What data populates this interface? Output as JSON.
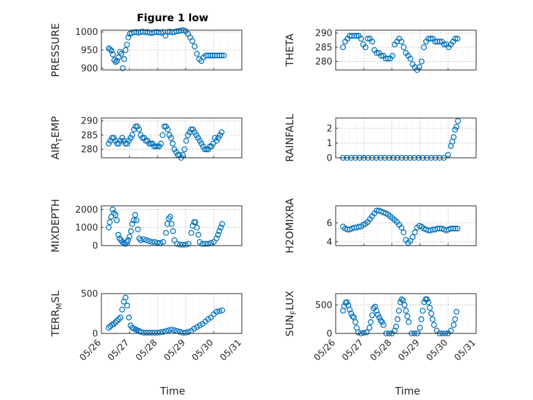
{
  "figure": {
    "title": "Figure 1 low",
    "xlabel": "Time",
    "x_tick_labels": [
      "05/26",
      "05/27",
      "05/28",
      "05/29",
      "05/30",
      "05/31"
    ]
  },
  "chart_data": [
    {
      "type": "scatter",
      "title": "Figure 1 low",
      "ylabel": "PRESSURE",
      "xlim": [
        0,
        5
      ],
      "ylim": [
        895,
        1005
      ],
      "yticks": [
        900,
        950,
        1000
      ],
      "grid": true,
      "x_unit": "days since 05/26",
      "x": [
        0.26,
        0.31,
        0.36,
        0.41,
        0.46,
        0.51,
        0.56,
        0.61,
        0.66,
        0.71,
        0.76,
        0.81,
        0.86,
        0.91,
        0.96,
        1.01,
        1.08,
        1.16,
        1.24,
        1.32,
        1.4,
        1.48,
        1.56,
        1.64,
        1.72,
        1.8,
        1.88,
        1.96,
        2.04,
        2.12,
        2.2,
        2.28,
        2.36,
        2.44,
        2.52,
        2.6,
        2.68,
        2.76,
        2.84,
        2.92,
        3.0,
        3.08,
        3.16,
        3.24,
        3.32,
        3.4,
        3.48,
        3.56,
        3.64,
        3.72,
        3.8,
        3.88,
        3.96,
        4.04,
        4.12,
        4.2,
        4.28,
        4.36
      ],
      "y": [
        955,
        952,
        948,
        938,
        922,
        917,
        920,
        930,
        945,
        940,
        900,
        925,
        950,
        965,
        985,
        995,
        997,
        999,
        1000,
        998,
        1000,
        1001,
        999,
        1000,
        998,
        997,
        999,
        1000,
        999,
        998,
        1000,
        990,
        1000,
        1001,
        999,
        1000,
        1002,
        1003,
        1004,
        1005,
        1002,
        995,
        985,
        975,
        960,
        940,
        925,
        920,
        930,
        935,
        935,
        935,
        935,
        935,
        935,
        935,
        935,
        935
      ]
    },
    {
      "type": "scatter",
      "ylabel": "THETA",
      "xlim": [
        0,
        5
      ],
      "ylim": [
        277,
        291
      ],
      "yticks": [
        280,
        285,
        290
      ],
      "grid": true,
      "x": [
        0.26,
        0.34,
        0.42,
        0.5,
        0.58,
        0.66,
        0.74,
        0.82,
        0.9,
        0.98,
        1.06,
        1.14,
        1.22,
        1.3,
        1.38,
        1.46,
        1.54,
        1.62,
        1.7,
        1.78,
        1.86,
        1.94,
        2.02,
        2.1,
        2.18,
        2.26,
        2.34,
        2.42,
        2.5,
        2.58,
        2.66,
        2.74,
        2.82,
        2.9,
        2.98,
        3.06,
        3.14,
        3.22,
        3.3,
        3.38,
        3.46,
        3.54,
        3.62,
        3.7,
        3.78,
        3.86,
        3.94,
        4.02,
        4.1,
        4.18,
        4.26,
        4.34
      ],
      "y": [
        285,
        287,
        288,
        289,
        289,
        289,
        289,
        289,
        288,
        286,
        285,
        288,
        288,
        287,
        284,
        283,
        283,
        282,
        282,
        281,
        281,
        281,
        282,
        286,
        287,
        288,
        287,
        285,
        283,
        282,
        281,
        279,
        278,
        277,
        278,
        280,
        285,
        287,
        288,
        288,
        288,
        287,
        287,
        287,
        287,
        286,
        286,
        285,
        286,
        287,
        288,
        288
      ]
    },
    {
      "type": "scatter",
      "ylabel": "AIR_TEMP",
      "xlim": [
        0,
        5
      ],
      "ylim": [
        277,
        291
      ],
      "yticks": [
        280,
        285,
        290
      ],
      "grid": true,
      "x": [
        0.26,
        0.32,
        0.38,
        0.44,
        0.5,
        0.56,
        0.62,
        0.68,
        0.74,
        0.8,
        0.86,
        0.92,
        0.98,
        1.04,
        1.1,
        1.16,
        1.22,
        1.28,
        1.34,
        1.4,
        1.46,
        1.52,
        1.58,
        1.64,
        1.7,
        1.76,
        1.82,
        1.88,
        1.94,
        2.0,
        2.06,
        2.12,
        2.18,
        2.24,
        2.3,
        2.36,
        2.42,
        2.48,
        2.54,
        2.6,
        2.66,
        2.72,
        2.78,
        2.84,
        2.9,
        2.96,
        3.02,
        3.08,
        3.14,
        3.2,
        3.26,
        3.32,
        3.38,
        3.44,
        3.5,
        3.56,
        3.62,
        3.68,
        3.74,
        3.8,
        3.86,
        3.92,
        3.98,
        4.04,
        4.1,
        4.16,
        4.22,
        4.28
      ],
      "y": [
        282,
        283,
        284,
        284,
        283,
        282,
        282,
        283,
        284,
        283,
        282,
        282,
        283,
        284,
        285,
        287,
        288,
        288,
        287,
        285,
        284,
        284,
        283,
        283,
        282,
        282,
        282,
        281,
        281,
        281,
        281,
        282,
        285,
        288,
        288,
        287,
        285,
        284,
        282,
        280,
        279,
        278,
        278,
        277,
        278,
        280,
        283,
        285,
        286,
        287,
        287,
        286,
        285,
        284,
        283,
        282,
        281,
        280,
        280,
        280,
        281,
        281,
        282,
        284,
        283,
        284,
        285,
        286
      ]
    },
    {
      "type": "scatter",
      "ylabel": "RAINFALL",
      "xlim": [
        0,
        5
      ],
      "ylim": [
        0,
        2.7
      ],
      "yticks": [
        0,
        1,
        2
      ],
      "grid": true,
      "x": [
        0.26,
        0.4,
        0.55,
        0.7,
        0.85,
        1.0,
        1.15,
        1.3,
        1.45,
        1.6,
        1.75,
        1.9,
        2.05,
        2.2,
        2.35,
        2.5,
        2.65,
        2.8,
        2.95,
        3.1,
        3.25,
        3.4,
        3.55,
        3.7,
        3.85,
        4.0,
        4.1,
        4.15,
        4.2,
        4.25,
        4.3,
        4.35
      ],
      "y": [
        0,
        0,
        0,
        0,
        0,
        0,
        0,
        0,
        0,
        0,
        0,
        0,
        0,
        0,
        0,
        0,
        0,
        0,
        0,
        0,
        0,
        0,
        0,
        0,
        0,
        0.2,
        0.8,
        1.1,
        1.4,
        1.9,
        2.1,
        2.5
      ]
    },
    {
      "type": "scatter",
      "ylabel": "MIXDEPTH",
      "xlim": [
        0,
        5
      ],
      "ylim": [
        0,
        2200
      ],
      "yticks": [
        0,
        1000,
        2000
      ],
      "grid": true,
      "x": [
        0.26,
        0.3,
        0.35,
        0.4,
        0.45,
        0.5,
        0.55,
        0.6,
        0.65,
        0.7,
        0.75,
        0.8,
        0.85,
        0.9,
        0.95,
        1.0,
        1.05,
        1.1,
        1.15,
        1.2,
        1.25,
        1.3,
        1.35,
        1.4,
        1.5,
        1.6,
        1.7,
        1.8,
        1.9,
        2.0,
        2.1,
        2.2,
        2.3,
        2.35,
        2.4,
        2.45,
        2.5,
        2.55,
        2.6,
        2.7,
        2.8,
        2.9,
        3.0,
        3.1,
        3.2,
        3.25,
        3.3,
        3.35,
        3.4,
        3.45,
        3.5,
        3.6,
        3.7,
        3.8,
        3.9,
        4.0,
        4.1,
        4.15,
        4.2,
        4.25,
        4.3
      ],
      "y": [
        1000,
        1300,
        1600,
        2000,
        1800,
        1700,
        1400,
        600,
        400,
        300,
        200,
        150,
        100,
        200,
        300,
        500,
        800,
        1200,
        1400,
        1700,
        1400,
        900,
        400,
        300,
        350,
        300,
        250,
        200,
        200,
        150,
        150,
        200,
        700,
        1200,
        1500,
        1600,
        1200,
        800,
        300,
        100,
        50,
        50,
        50,
        100,
        700,
        1100,
        1300,
        1300,
        1000,
        600,
        200,
        100,
        100,
        100,
        150,
        200,
        400,
        600,
        800,
        1000,
        1200
      ]
    },
    {
      "type": "scatter",
      "ylabel": "H2OMIXRA",
      "xlim": [
        0,
        5
      ],
      "ylim": [
        3.6,
        7.8
      ],
      "yticks": [
        4,
        6
      ],
      "grid": true,
      "x": [
        0.26,
        0.34,
        0.42,
        0.5,
        0.58,
        0.66,
        0.74,
        0.82,
        0.9,
        0.98,
        1.06,
        1.14,
        1.22,
        1.3,
        1.38,
        1.46,
        1.54,
        1.62,
        1.7,
        1.78,
        1.86,
        1.94,
        2.02,
        2.1,
        2.18,
        2.26,
        2.34,
        2.42,
        2.5,
        2.58,
        2.66,
        2.74,
        2.82,
        2.9,
        2.98,
        3.06,
        3.14,
        3.22,
        3.3,
        3.38,
        3.46,
        3.54,
        3.62,
        3.7,
        3.78,
        3.86,
        3.94,
        4.02,
        4.1,
        4.18,
        4.26,
        4.34
      ],
      "y": [
        5.6,
        5.4,
        5.3,
        5.3,
        5.4,
        5.5,
        5.5,
        5.6,
        5.6,
        5.8,
        5.9,
        6.1,
        6.4,
        6.7,
        7.0,
        7.3,
        7.3,
        7.2,
        7.1,
        7.0,
        6.9,
        6.7,
        6.5,
        6.3,
        6.1,
        5.8,
        5.5,
        5.0,
        4.2,
        3.9,
        4.1,
        4.5,
        5.0,
        5.5,
        5.7,
        5.6,
        5.4,
        5.3,
        5.2,
        5.2,
        5.3,
        5.3,
        5.4,
        5.4,
        5.4,
        5.3,
        5.2,
        5.3,
        5.4,
        5.4,
        5.4,
        5.4
      ]
    },
    {
      "type": "scatter",
      "ylabel": "TERR_MSL",
      "xlim": [
        0,
        5
      ],
      "ylim": [
        0,
        500
      ],
      "yticks": [
        0,
        500
      ],
      "grid": true,
      "x": [
        0.26,
        0.32,
        0.38,
        0.44,
        0.5,
        0.56,
        0.62,
        0.68,
        0.74,
        0.8,
        0.86,
        0.92,
        0.98,
        1.04,
        1.1,
        1.16,
        1.22,
        1.28,
        1.34,
        1.4,
        1.5,
        1.6,
        1.7,
        1.8,
        1.9,
        2.0,
        2.1,
        2.2,
        2.3,
        2.4,
        2.5,
        2.6,
        2.7,
        2.8,
        2.9,
        3.0,
        3.1,
        3.2,
        3.3,
        3.4,
        3.5,
        3.6,
        3.7,
        3.8,
        3.9,
        4.0,
        4.1,
        4.2,
        4.3
      ],
      "y": [
        70,
        90,
        110,
        120,
        140,
        160,
        180,
        200,
        300,
        400,
        450,
        350,
        200,
        100,
        70,
        60,
        50,
        40,
        30,
        20,
        10,
        10,
        10,
        10,
        10,
        10,
        15,
        20,
        30,
        40,
        50,
        40,
        30,
        20,
        10,
        10,
        20,
        30,
        60,
        80,
        100,
        120,
        150,
        180,
        200,
        240,
        270,
        280,
        290
      ]
    },
    {
      "type": "scatter",
      "ylabel": "SUN_FLUX",
      "xlim": [
        0,
        5
      ],
      "ylim": [
        0,
        700
      ],
      "yticks": [
        0,
        500
      ],
      "grid": true,
      "x": [
        0.26,
        0.3,
        0.35,
        0.4,
        0.45,
        0.5,
        0.55,
        0.6,
        0.65,
        0.7,
        0.75,
        0.8,
        0.9,
        1.0,
        1.1,
        1.2,
        1.25,
        1.3,
        1.35,
        1.4,
        1.45,
        1.5,
        1.55,
        1.6,
        1.65,
        1.7,
        1.8,
        1.9,
        2.0,
        2.1,
        2.15,
        2.2,
        2.25,
        2.3,
        2.35,
        2.4,
        2.45,
        2.5,
        2.55,
        2.6,
        2.7,
        2.8,
        2.9,
        3.0,
        3.05,
        3.1,
        3.15,
        3.2,
        3.25,
        3.3,
        3.35,
        3.4,
        3.45,
        3.5,
        3.6,
        3.7,
        3.8,
        3.9,
        4.0,
        4.1,
        4.2,
        4.25,
        4.3
      ],
      "y": [
        400,
        480,
        540,
        550,
        500,
        420,
        350,
        300,
        280,
        200,
        100,
        20,
        0,
        10,
        20,
        100,
        200,
        320,
        440,
        470,
        400,
        330,
        280,
        230,
        200,
        150,
        0,
        0,
        0,
        50,
        120,
        250,
        400,
        550,
        600,
        580,
        500,
        400,
        300,
        200,
        0,
        0,
        0,
        100,
        250,
        400,
        550,
        600,
        600,
        550,
        450,
        350,
        250,
        150,
        50,
        0,
        0,
        0,
        0,
        50,
        150,
        250,
        380
      ]
    }
  ]
}
